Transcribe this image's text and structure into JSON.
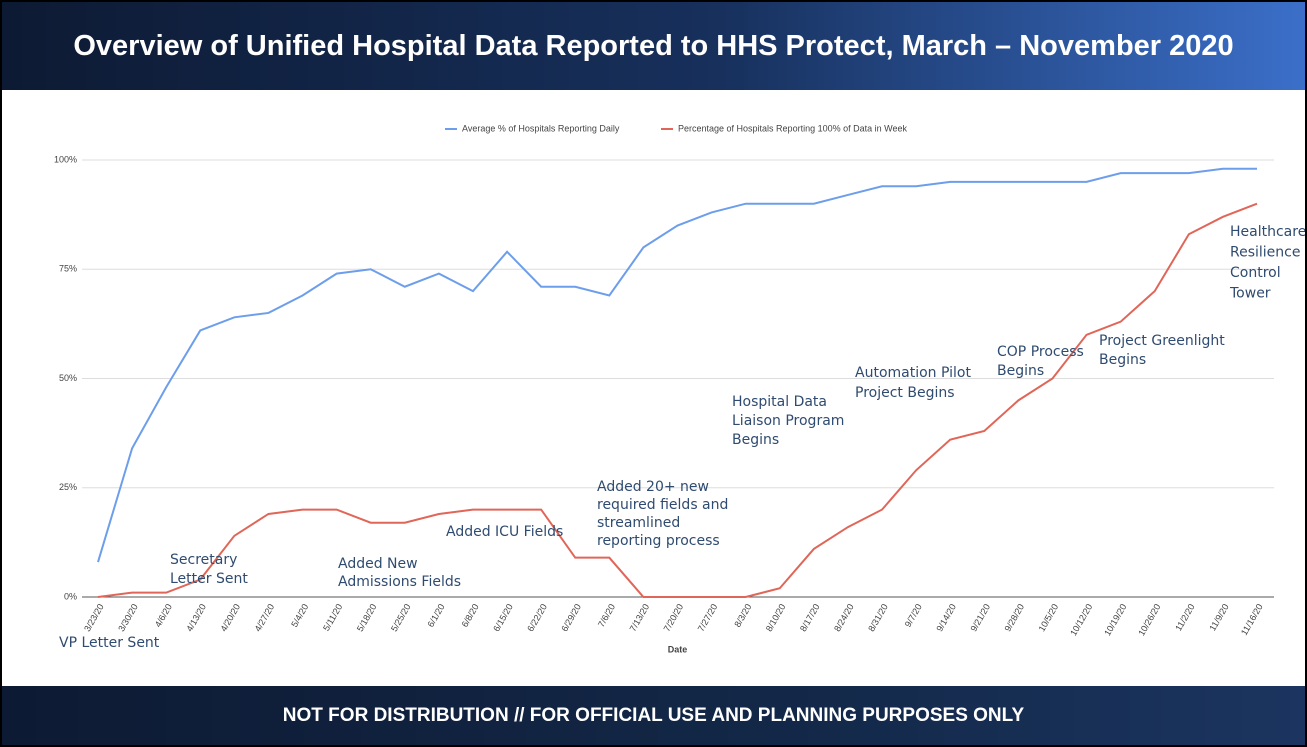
{
  "header": {
    "title": "Overview of Unified Hospital Data Reported to HHS Protect, March – November 2020"
  },
  "footer": {
    "text": "NOT FOR DISTRIBUTION // FOR OFFICIAL USE AND PLANNING PURPOSES ONLY"
  },
  "chart_data": {
    "type": "line",
    "x_label": "Date",
    "categories": [
      "3/23/20",
      "3/30/20",
      "4/6/20",
      "4/13/20",
      "4/20/20",
      "4/27/20",
      "5/4/20",
      "5/11/20",
      "5/18/20",
      "5/25/20",
      "6/1/20",
      "6/8/20",
      "6/15/20",
      "6/22/20",
      "6/29/20",
      "7/6/20",
      "7/13/20",
      "7/20/20",
      "7/27/20",
      "8/3/20",
      "8/10/20",
      "8/17/20",
      "8/24/20",
      "8/31/20",
      "9/7/20",
      "9/14/20",
      "9/21/20",
      "9/28/20",
      "10/5/20",
      "10/12/20",
      "10/19/20",
      "10/26/20",
      "11/2/20",
      "11/9/20",
      "11/16/20"
    ],
    "series": [
      {
        "name": "Average % of Hospitals Reporting Daily",
        "color": "#6d9eeb",
        "values": [
          8,
          34,
          48,
          61,
          64,
          65,
          69,
          74,
          75,
          71,
          74,
          70,
          79,
          71,
          71,
          69,
          80,
          85,
          88,
          90,
          90,
          90,
          92,
          94,
          94,
          95,
          95,
          95,
          95,
          95,
          97,
          97,
          97,
          98,
          98
        ]
      },
      {
        "name": "Percentage of Hospitals Reporting 100% of Data in Week",
        "color": "#e06658",
        "values": [
          0,
          1,
          1,
          4,
          14,
          19,
          20,
          20,
          17,
          17,
          19,
          20,
          20,
          20,
          9,
          9,
          0,
          0,
          0,
          0,
          2,
          11,
          16,
          20,
          29,
          36,
          38,
          45,
          50,
          60,
          63,
          70,
          83,
          87,
          90
        ]
      }
    ],
    "ylim": [
      0,
      100
    ],
    "yticks": [
      {
        "value": 0,
        "label": "0%"
      },
      {
        "value": 25,
        "label": "25%"
      },
      {
        "value": 50,
        "label": "50%"
      },
      {
        "value": 75,
        "label": "75%"
      },
      {
        "value": 100,
        "label": "100%"
      }
    ],
    "grid": true,
    "legend": "top",
    "annotations": [
      [
        "VP Letter Sent"
      ],
      [
        "Secretary",
        "Letter Sent"
      ],
      [
        "Added New",
        "Admissions Fields"
      ],
      [
        "Added ICU Fields"
      ],
      [
        "Added 20+ new",
        "required fields and",
        "streamlined",
        "reporting process"
      ],
      [
        "Hospital Data",
        "Liaison Program",
        "Begins"
      ],
      [
        "Automation Pilot",
        "Project Begins"
      ],
      [
        "COP Process",
        "Begins"
      ],
      [
        "Project Greenlight",
        "Begins"
      ],
      [
        "Healthcare",
        "Resilience",
        "Control",
        "Tower"
      ]
    ]
  }
}
